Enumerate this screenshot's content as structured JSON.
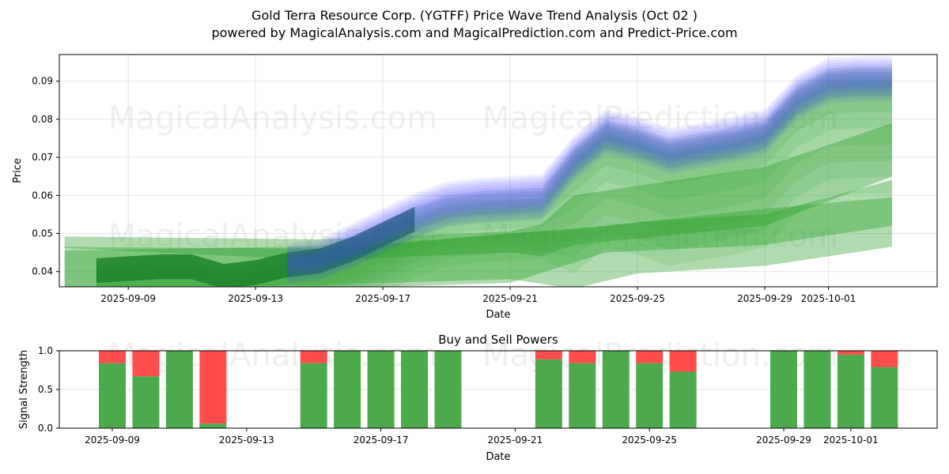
{
  "header": {
    "title": "Gold Terra Resource Corp. (YGTFF) Price Wave Trend Analysis (Oct 02 )",
    "subtitle": "powered by MagicalAnalysis.com and MagicalPrediction.com and Predict-Price.com"
  },
  "watermarks": [
    "MagicalAnalysis.com",
    "MagicalPrediction.com"
  ],
  "chart_data": [
    {
      "type": "area",
      "title": "",
      "xlabel": "Date",
      "ylabel": "Price",
      "ylim": [
        0.036,
        0.097
      ],
      "xlim": [
        "2025-09-06T20:00",
        "2025-10-04T10:00"
      ],
      "grid": true,
      "yticks": [
        0.04,
        0.05,
        0.06,
        0.07,
        0.08,
        0.09
      ],
      "ytick_labels": [
        "0.04",
        "0.05",
        "0.06",
        "0.07",
        "0.08",
        "0.09"
      ],
      "xticks": [
        "2025-09-09",
        "2025-09-13",
        "2025-09-17",
        "2025-09-21",
        "2025-09-25",
        "2025-09-29",
        "2025-10-01"
      ],
      "colors": {
        "blue": "#4040ff",
        "green": "#2ca02c",
        "dark_green": "#1a7f2a"
      },
      "trend": {
        "dates": [
          "2025-09-08",
          "2025-09-09",
          "2025-09-10",
          "2025-09-11",
          "2025-09-12",
          "2025-09-13",
          "2025-09-14",
          "2025-09-15",
          "2025-09-16",
          "2025-09-17",
          "2025-09-18",
          "2025-09-19",
          "2025-09-20",
          "2025-09-21",
          "2025-09-22",
          "2025-09-23",
          "2025-09-24",
          "2025-09-25",
          "2025-09-26",
          "2025-09-27",
          "2025-09-28",
          "2025-09-29",
          "2025-09-30",
          "2025-10-01",
          "2025-10-02",
          "2025-10-03"
        ],
        "price": [
          0.0405,
          0.041,
          0.0415,
          0.0415,
          0.039,
          0.04,
          0.042,
          0.043,
          0.046,
          0.05,
          0.054,
          0.057,
          0.058,
          0.0585,
          0.059,
          0.069,
          0.076,
          0.074,
          0.071,
          0.0725,
          0.074,
          0.076,
          0.085,
          0.0895,
          0.09,
          0.09
        ]
      },
      "wide_bands": [
        {
          "name": "long-range-band-1",
          "dates": [
            "2025-09-07",
            "2025-09-15",
            "2025-09-21",
            "2025-09-22",
            "2025-09-23",
            "2025-09-29",
            "2025-10-03"
          ],
          "upper": [
            0.0492,
            0.0485,
            0.0505,
            0.0525,
            0.06,
            0.0675,
            0.079
          ],
          "lower": [
            0.0462,
            0.043,
            0.045,
            0.044,
            0.047,
            0.052,
            0.065
          ]
        },
        {
          "name": "long-range-band-2",
          "dates": [
            "2025-09-07",
            "2025-09-15",
            "2025-09-21",
            "2025-09-23",
            "2025-09-25",
            "2025-09-29",
            "2025-10-03"
          ],
          "upper": [
            0.0465,
            0.046,
            0.05,
            0.051,
            0.053,
            0.055,
            0.064
          ],
          "lower": [
            0.036,
            0.0365,
            0.038,
            0.0355,
            0.0395,
            0.0415,
            0.0465
          ]
        },
        {
          "name": "long-range-band-3",
          "dates": [
            "2025-09-07",
            "2025-09-17",
            "2025-09-21",
            "2025-09-24",
            "2025-09-29",
            "2025-10-03"
          ],
          "upper": [
            0.0455,
            0.047,
            0.05,
            0.052,
            0.0565,
            0.0595
          ],
          "lower": [
            0.036,
            0.036,
            0.037,
            0.045,
            0.047,
            0.052
          ]
        }
      ]
    },
    {
      "type": "bar",
      "title": "Buy and Sell Powers",
      "xlabel": "Date",
      "ylabel": "Signal Strength",
      "ylim": [
        0,
        1
      ],
      "yticks": [
        0.0,
        0.5,
        1.0
      ],
      "ytick_labels": [
        "0.0",
        "0.5",
        "1.0"
      ],
      "xticks": [
        "2025-09-09",
        "2025-09-13",
        "2025-09-17",
        "2025-09-21",
        "2025-09-25",
        "2025-09-29",
        "2025-10-01"
      ],
      "colors": {
        "buy": "#4caa4c",
        "sell": "#ff4d4d"
      },
      "categories": [
        "2025-09-09",
        "2025-09-10",
        "2025-09-11",
        "2025-09-12",
        "2025-09-15",
        "2025-09-16",
        "2025-09-17",
        "2025-09-18",
        "2025-09-19",
        "2025-09-22",
        "2025-09-23",
        "2025-09-24",
        "2025-09-25",
        "2025-09-26",
        "2025-09-29",
        "2025-09-30",
        "2025-10-01",
        "2025-10-02"
      ],
      "series": [
        {
          "name": "Buy",
          "values": [
            0.84,
            0.67,
            1.0,
            0.06,
            0.84,
            1.0,
            1.0,
            1.0,
            1.0,
            0.89,
            0.84,
            1.0,
            0.84,
            0.73,
            1.0,
            1.0,
            0.95,
            0.79
          ]
        },
        {
          "name": "Sell",
          "values": [
            0.16,
            0.33,
            0.0,
            0.94,
            0.16,
            0.0,
            0.0,
            0.0,
            0.0,
            0.11,
            0.16,
            0.0,
            0.16,
            0.27,
            0.0,
            0.0,
            0.05,
            0.21
          ]
        }
      ]
    }
  ]
}
